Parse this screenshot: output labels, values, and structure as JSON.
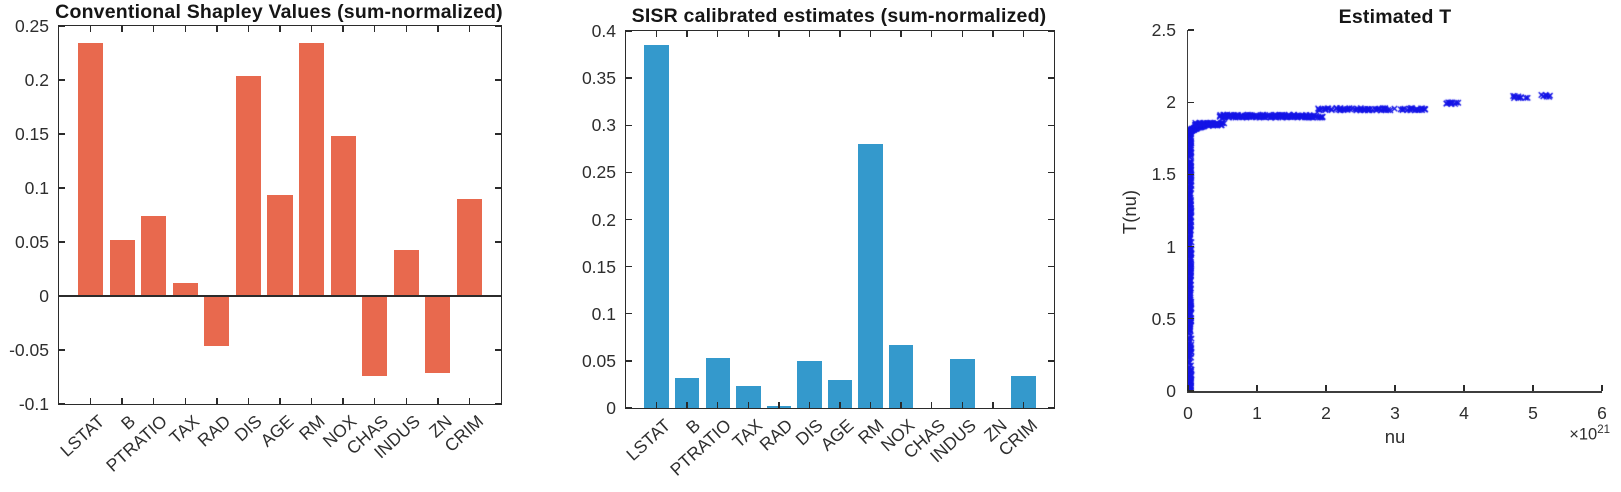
{
  "figure": {
    "background": "#ffffff",
    "axis_color": "#2b2b2b",
    "tick_label_color": "#2e2e2e",
    "title_color": "#161616"
  },
  "chart_data": [
    {
      "type": "bar",
      "panel": "left",
      "title": "Conventional Shapley Values (sum-normalized)",
      "categories": [
        "LSTAT",
        "B",
        "PTRATIO",
        "TAX",
        "RAD",
        "DIS",
        "AGE",
        "RM",
        "NOX",
        "CHAS",
        "INDUS",
        "ZN",
        "CRIM"
      ],
      "values": [
        0.234,
        0.052,
        0.074,
        0.012,
        -0.046,
        0.204,
        0.094,
        0.234,
        0.148,
        -0.074,
        0.043,
        -0.071,
        0.09
      ],
      "bar_color": "#E8694E",
      "xlabel": "",
      "ylabel": "",
      "ylim": [
        -0.1,
        0.25
      ],
      "yticks": [
        -0.1,
        -0.05,
        0,
        0.05,
        0.1,
        0.15,
        0.2,
        0.25
      ],
      "ytick_labels": [
        "-0.1",
        "-0.05",
        "0",
        "0.05",
        "0.1",
        "0.15",
        "0.2",
        "0.25"
      ],
      "grid": false,
      "box": true,
      "bar_width_ratio": 0.8,
      "zero_line": true
    },
    {
      "type": "bar",
      "panel": "middle",
      "title": "SISR calibrated estimates (sum-normalized)",
      "categories": [
        "LSTAT",
        "B",
        "PTRATIO",
        "TAX",
        "RAD",
        "DIS",
        "AGE",
        "RM",
        "NOX",
        "CHAS",
        "INDUS",
        "ZN",
        "CRIM"
      ],
      "values": [
        0.385,
        0.032,
        0.053,
        0.023,
        0.002,
        0.05,
        0.03,
        0.28,
        0.067,
        0.0,
        0.052,
        0.0,
        0.034
      ],
      "bar_color": "#3499CC",
      "xlabel": "",
      "ylabel": "",
      "ylim": [
        0,
        0.4
      ],
      "yticks": [
        0,
        0.05,
        0.1,
        0.15,
        0.2,
        0.25,
        0.3,
        0.35,
        0.4
      ],
      "ytick_labels": [
        "0",
        "0.05",
        "0.1",
        "0.15",
        "0.2",
        "0.25",
        "0.3",
        "0.35",
        "0.4"
      ],
      "grid": false,
      "box": true,
      "bar_width_ratio": 0.8,
      "zero_line": false
    },
    {
      "type": "scatter",
      "panel": "right",
      "title": "Estimated T",
      "xlabel": "nu",
      "ylabel": "T(nu)",
      "x_offset_label": {
        "prefix": "×10",
        "exponent": "21"
      },
      "x_scale_exponent": 21,
      "xlim": [
        0,
        6
      ],
      "ylim": [
        0,
        2.5
      ],
      "xticks": [
        0,
        1,
        2,
        3,
        4,
        5,
        6
      ],
      "xtick_labels": [
        "0",
        "1",
        "2",
        "3",
        "4",
        "5",
        "6"
      ],
      "yticks": [
        0,
        0.5,
        1,
        1.5,
        2,
        2.5
      ],
      "ytick_labels": [
        "0",
        "0.5",
        "1",
        "1.5",
        "2",
        "2.5"
      ],
      "marker": "x",
      "marker_color": "#1414E6",
      "grid": false,
      "box": false,
      "trend": "T(nu) rises almost vertically from 0 to ~1.8 at nu near 0, bends sharply, then saturates in small steps: ~1.85 by nu 0.5e21, ~1.90 to nu 2e21, ~1.95 to nu 3.5e21, ~1.99 near 3.8e21, reaching ~2.04 at nu 4.7-5.3e21",
      "clusters": [
        {
          "name": "dense-column",
          "mode": "uniform",
          "nu": [
            0.0,
            0.05
          ],
          "T": [
            0.0,
            1.785
          ],
          "n": 430
        },
        {
          "name": "elbow-arc",
          "mode": "arc",
          "nu": [
            0.02,
            0.24
          ],
          "T": [
            1.78,
            1.838
          ],
          "power": 2.4,
          "n": 120,
          "nu_jitter": 0.03,
          "T_jitter": 0.012
        },
        {
          "name": "shoulder",
          "mode": "uniform",
          "nu": [
            0.1,
            0.54
          ],
          "T": [
            1.838,
            1.858
          ],
          "n": 85
        },
        {
          "name": "plateau-low",
          "mode": "uniform",
          "nu": [
            0.46,
            1.96
          ],
          "T": [
            1.893,
            1.913
          ],
          "n": 175
        },
        {
          "name": "plateau-mid",
          "mode": "uniform",
          "nu": [
            1.88,
            3.46
          ],
          "T": [
            1.944,
            1.959
          ],
          "n": 85
        },
        {
          "name": "cluster-3.8",
          "mode": "uniform",
          "nu": [
            3.72,
            3.92
          ],
          "T": [
            1.986,
            2.0
          ],
          "n": 11
        },
        {
          "name": "cluster-4.8",
          "mode": "uniform",
          "nu": [
            4.7,
            4.93
          ],
          "T": [
            2.028,
            2.043
          ],
          "n": 9
        },
        {
          "name": "cluster-5.2",
          "mode": "uniform",
          "nu": [
            5.12,
            5.3
          ],
          "T": [
            2.036,
            2.05
          ],
          "n": 7
        }
      ]
    }
  ]
}
